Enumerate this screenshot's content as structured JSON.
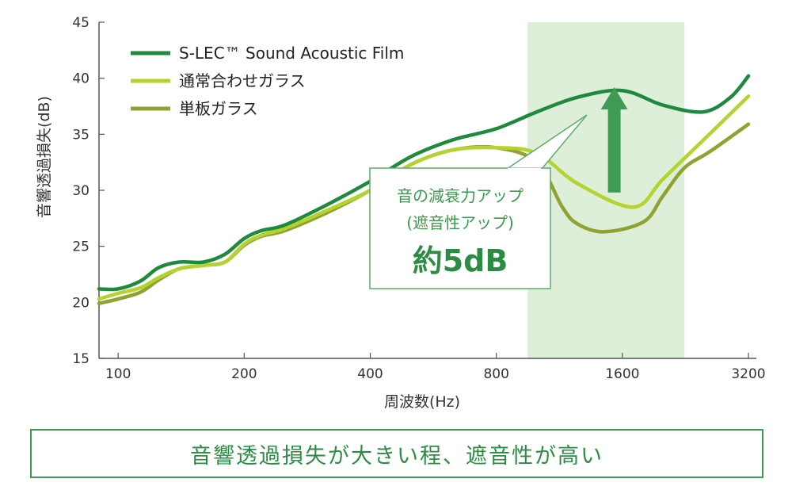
{
  "chart_data": {
    "type": "line",
    "title": "",
    "xlabel": "周波数(Hz)",
    "ylabel": "音響透過損失(dB)",
    "x_scale": "log2",
    "x_ticks": [
      100,
      200,
      400,
      800,
      1600,
      3200
    ],
    "x_tick_labels": [
      "100",
      "200",
      "400",
      "800",
      "1600",
      "3200"
    ],
    "xlim": [
      90,
      3200
    ],
    "ylim": [
      15,
      45
    ],
    "y_ticks": [
      15,
      20,
      25,
      30,
      35,
      40,
      45
    ],
    "y_tick_labels": [
      "15",
      "20",
      "25",
      "30",
      "35",
      "40",
      "45"
    ],
    "grid": false,
    "legend_position": "top-left",
    "highlight_band": {
      "x_range": [
        950,
        2250
      ],
      "color": "#deefd9"
    },
    "series": [
      {
        "name": "S-LEC™ Sound Acoustic Film",
        "color": "#1f8a3e",
        "points": [
          [
            90,
            21.2
          ],
          [
            100,
            21.2
          ],
          [
            113,
            21.9
          ],
          [
            125,
            23.1
          ],
          [
            140,
            23.6
          ],
          [
            160,
            23.6
          ],
          [
            180,
            24.3
          ],
          [
            200,
            25.7
          ],
          [
            220,
            26.4
          ],
          [
            250,
            26.9
          ],
          [
            315,
            28.7
          ],
          [
            400,
            30.8
          ],
          [
            500,
            33.0
          ],
          [
            630,
            34.5
          ],
          [
            800,
            35.5
          ],
          [
            1000,
            37.0
          ],
          [
            1250,
            38.3
          ],
          [
            1600,
            38.9
          ],
          [
            2000,
            37.6
          ],
          [
            2500,
            37.0
          ],
          [
            2900,
            38.3
          ],
          [
            3200,
            40.2
          ]
        ]
      },
      {
        "name": "通常合わせガラス",
        "color": "#b4d32e",
        "points": [
          [
            90,
            20.3
          ],
          [
            100,
            20.8
          ],
          [
            113,
            21.3
          ],
          [
            125,
            22.2
          ],
          [
            140,
            23.0
          ],
          [
            160,
            23.3
          ],
          [
            180,
            23.6
          ],
          [
            200,
            25.2
          ],
          [
            220,
            26.0
          ],
          [
            250,
            26.6
          ],
          [
            315,
            28.2
          ],
          [
            400,
            30.0
          ],
          [
            500,
            32.3
          ],
          [
            630,
            33.6
          ],
          [
            800,
            33.8
          ],
          [
            1000,
            33.3
          ],
          [
            1250,
            30.6
          ],
          [
            1700,
            28.5
          ],
          [
            2000,
            31.0
          ],
          [
            2500,
            34.5
          ],
          [
            3200,
            38.4
          ]
        ]
      },
      {
        "name": "単板ガラス",
        "color": "#8fa232",
        "points": [
          [
            90,
            19.9
          ],
          [
            100,
            20.3
          ],
          [
            113,
            20.9
          ],
          [
            125,
            22.0
          ],
          [
            140,
            23.0
          ],
          [
            160,
            23.3
          ],
          [
            180,
            23.6
          ],
          [
            200,
            25.1
          ],
          [
            220,
            25.9
          ],
          [
            250,
            26.4
          ],
          [
            315,
            28.0
          ],
          [
            400,
            30.0
          ],
          [
            500,
            32.3
          ],
          [
            630,
            33.6
          ],
          [
            800,
            33.8
          ],
          [
            1000,
            32.5
          ],
          [
            1150,
            28.5
          ],
          [
            1250,
            27.0
          ],
          [
            1450,
            26.3
          ],
          [
            1800,
            27.2
          ],
          [
            2000,
            29.5
          ],
          [
            2250,
            32.0
          ],
          [
            2600,
            33.5
          ],
          [
            3200,
            35.9
          ]
        ]
      }
    ],
    "annotation": {
      "lines": [
        "音の減衰力アップ",
        "(遮音性アップ)",
        "約5dB"
      ],
      "arrow_from": [
        1530,
        29.8
      ],
      "arrow_to": [
        1530,
        39.2
      ]
    }
  },
  "caption": "音響透過損失が大きい程、遮音性が高い"
}
